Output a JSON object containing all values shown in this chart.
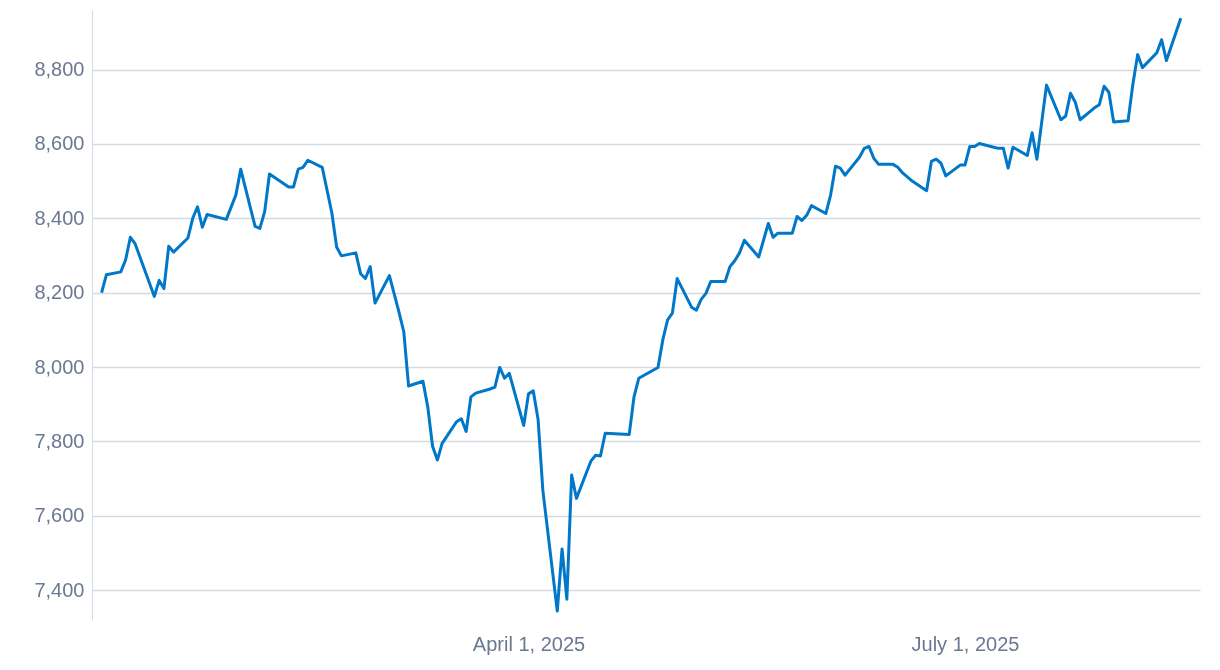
{
  "chart_data": {
    "type": "line",
    "series": [
      {
        "color": "#0077c8",
        "x": [
          "2025-01-02",
          "2025-01-03",
          "2025-01-06",
          "2025-01-07",
          "2025-01-08",
          "2025-01-09",
          "2025-01-13",
          "2025-01-14",
          "2025-01-15",
          "2025-01-16",
          "2025-01-17",
          "2025-01-20",
          "2025-01-21",
          "2025-01-22",
          "2025-01-23",
          "2025-01-24",
          "2025-01-28",
          "2025-01-30",
          "2025-01-31",
          "2025-02-03",
          "2025-02-04",
          "2025-02-05",
          "2025-02-06",
          "2025-02-10",
          "2025-02-11",
          "2025-02-12",
          "2025-02-13",
          "2025-02-14",
          "2025-02-17",
          "2025-02-19",
          "2025-02-20",
          "2025-02-21",
          "2025-02-24",
          "2025-02-25",
          "2025-02-26",
          "2025-02-27",
          "2025-02-28",
          "2025-03-03",
          "2025-03-05",
          "2025-03-06",
          "2025-03-07",
          "2025-03-10",
          "2025-03-11",
          "2025-03-12",
          "2025-03-13",
          "2025-03-14",
          "2025-03-17",
          "2025-03-18",
          "2025-03-19",
          "2025-03-20",
          "2025-03-21",
          "2025-03-24",
          "2025-03-25",
          "2025-03-26",
          "2025-03-27",
          "2025-03-28",
          "2025-03-31",
          "2025-04-01",
          "2025-04-02",
          "2025-04-03",
          "2025-04-04",
          "2025-04-07",
          "2025-04-08",
          "2025-04-09",
          "2025-04-10",
          "2025-04-11",
          "2025-04-14",
          "2025-04-15",
          "2025-04-16",
          "2025-04-17",
          "2025-04-22",
          "2025-04-23",
          "2025-04-24",
          "2025-04-28",
          "2025-04-29",
          "2025-04-30",
          "2025-05-01",
          "2025-05-02",
          "2025-05-05",
          "2025-05-06",
          "2025-05-07",
          "2025-05-08",
          "2025-05-09",
          "2025-05-12",
          "2025-05-13",
          "2025-05-14",
          "2025-05-15",
          "2025-05-16",
          "2025-05-19",
          "2025-05-21",
          "2025-05-22",
          "2025-05-23",
          "2025-05-26",
          "2025-05-27",
          "2025-05-28",
          "2025-05-29",
          "2025-05-30",
          "2025-06-02",
          "2025-06-03",
          "2025-06-04",
          "2025-06-05",
          "2025-06-06",
          "2025-06-09",
          "2025-06-10",
          "2025-06-11",
          "2025-06-12",
          "2025-06-13",
          "2025-06-16",
          "2025-06-17",
          "2025-06-18",
          "2025-06-20",
          "2025-06-23",
          "2025-06-24",
          "2025-06-25",
          "2025-06-26",
          "2025-06-27",
          "2025-06-30",
          "2025-07-01",
          "2025-07-02",
          "2025-07-03",
          "2025-07-04",
          "2025-07-07",
          "2025-07-08",
          "2025-07-09",
          "2025-07-10",
          "2025-07-11",
          "2025-07-14",
          "2025-07-15",
          "2025-07-16",
          "2025-07-18",
          "2025-07-21",
          "2025-07-22",
          "2025-07-23",
          "2025-07-24",
          "2025-07-25",
          "2025-07-28",
          "2025-07-29",
          "2025-07-30",
          "2025-07-31",
          "2025-08-01",
          "2025-08-04",
          "2025-08-05",
          "2025-08-06",
          "2025-08-07",
          "2025-08-10",
          "2025-08-11",
          "2025-08-12",
          "2025-08-15"
        ],
        "values": [
          8200,
          8248,
          8256,
          8288,
          8349,
          8331,
          8190,
          8233,
          8211,
          8325,
          8309,
          8347,
          8400,
          8431,
          8376,
          8410,
          8397,
          8463,
          8532,
          8378,
          8373,
          8418,
          8519,
          8484,
          8484,
          8532,
          8537,
          8556,
          8537,
          8415,
          8323,
          8299,
          8307,
          8251,
          8238,
          8270,
          8172,
          8246,
          8148,
          8095,
          7949,
          7962,
          7893,
          7787,
          7750,
          7795,
          7853,
          7861,
          7827,
          7920,
          7930,
          7941,
          7946,
          7999,
          7970,
          7983,
          7843,
          7928,
          7936,
          7859,
          7668,
          7344,
          7511,
          7376,
          7710,
          7647,
          7747,
          7763,
          7761,
          7822,
          7819,
          7920,
          7970,
          7999,
          8073,
          8127,
          8145,
          8238,
          8161,
          8153,
          8182,
          8198,
          8230,
          8230,
          8270,
          8286,
          8307,
          8341,
          8296,
          8386,
          8349,
          8360,
          8360,
          8405,
          8394,
          8408,
          8434,
          8413,
          8463,
          8540,
          8535,
          8516,
          8564,
          8588,
          8593,
          8561,
          8545,
          8545,
          8537,
          8522,
          8500,
          8474,
          8553,
          8559,
          8548,
          8514,
          8543,
          8543,
          8593,
          8593,
          8601,
          8591,
          8588,
          8588,
          8535,
          8591,
          8569,
          8630,
          8559,
          8758,
          8665,
          8675,
          8736,
          8712,
          8665,
          8697,
          8705,
          8755,
          8739,
          8659,
          8662,
          8760,
          8840,
          8805,
          8845,
          8880,
          8824,
          8938
        ]
      }
    ],
    "xlim": [
      "2024-12-31",
      "2025-08-19"
    ],
    "xticks": [
      {
        "value": "2025-04-01",
        "label": "April 1, 2025"
      },
      {
        "value": "2025-07-01",
        "label": "July 1, 2025"
      }
    ],
    "ylim": [
      7320,
      8960
    ],
    "yticks": [
      {
        "value": 7400,
        "label": "7,400"
      },
      {
        "value": 7600,
        "label": "7,600"
      },
      {
        "value": 7800,
        "label": "7,800"
      },
      {
        "value": 8000,
        "label": "8,000"
      },
      {
        "value": 8200,
        "label": "8,200"
      },
      {
        "value": 8400,
        "label": "8,400"
      },
      {
        "value": 8600,
        "label": "8,600"
      },
      {
        "value": 8800,
        "label": "8,800"
      }
    ],
    "grid": "y",
    "marker": "none",
    "line_style": "solid"
  }
}
